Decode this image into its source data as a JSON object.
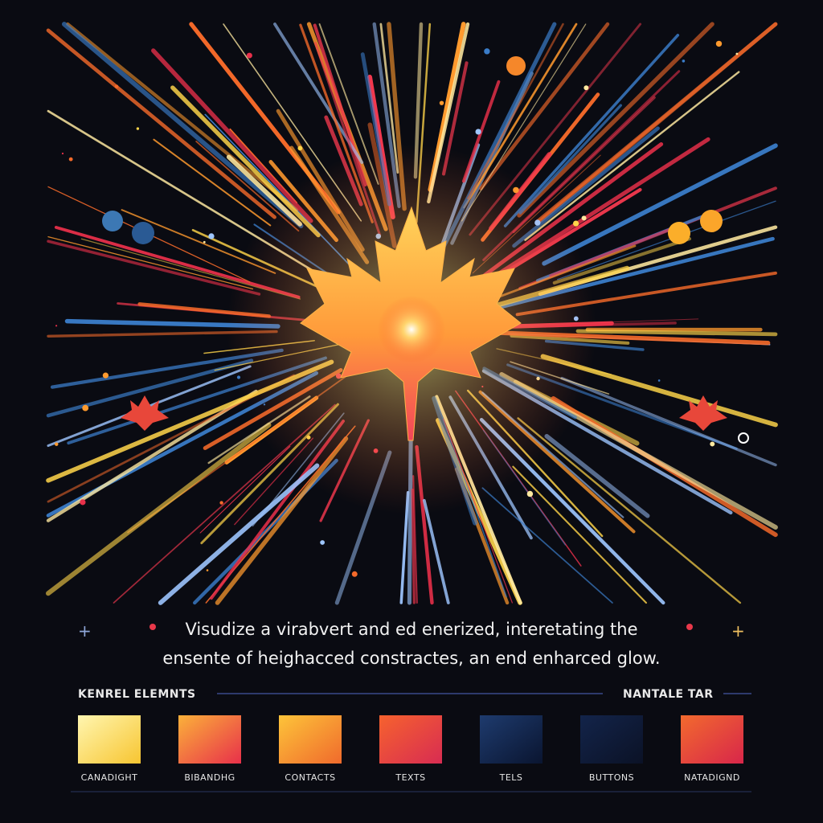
{
  "caption": {
    "lines": [
      "Visudize a virabvert and ed enerized, interetating the",
      "ensente of heighacced constractes, an end enharced glow."
    ]
  },
  "palette": {
    "title": "KENREL ELEMNTS",
    "aside": "NANTALE TAR",
    "swatches": [
      {
        "label": "CANADIGHT",
        "colors": [
          "#fff6b0",
          "#f7c531"
        ]
      },
      {
        "label": "BIBANDHG",
        "colors": [
          "#fbb13a",
          "#e8304a"
        ]
      },
      {
        "label": "CONTACTS",
        "colors": [
          "#fdc43a",
          "#f06a2c"
        ]
      },
      {
        "label": "TEXTS",
        "colors": [
          "#f6622e",
          "#d82c52"
        ]
      },
      {
        "label": "TELS",
        "colors": [
          "#1e3b6e",
          "#0a1530"
        ]
      },
      {
        "label": "BUTTONS",
        "colors": [
          "#13244a",
          "#0b1226"
        ]
      },
      {
        "label": "NATADIGND",
        "colors": [
          "#f26a2e",
          "#d8264a"
        ]
      }
    ]
  }
}
